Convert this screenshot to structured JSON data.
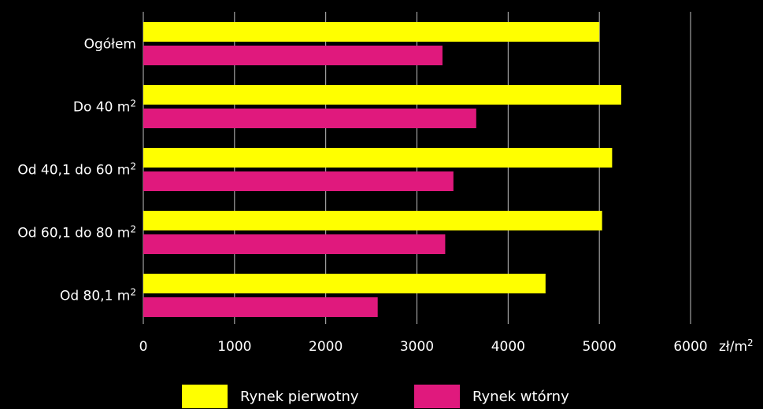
{
  "chart_data": {
    "type": "bar",
    "orientation": "horizontal",
    "categories": [
      {
        "main": "Ogółem",
        "sup": ""
      },
      {
        "main": "Do 40 m",
        "sup": "2"
      },
      {
        "main": "Od 40,1 do 60 m",
        "sup": "2"
      },
      {
        "main": "Od 60,1 do 80 m",
        "sup": "2"
      },
      {
        "main": "Od 80,1 m",
        "sup": "2"
      }
    ],
    "series": [
      {
        "name": "Rynek pierwotny",
        "color": "#ffff00",
        "values": [
          5000,
          5240,
          5140,
          5030,
          4410
        ]
      },
      {
        "name": "Rynek wtórny",
        "color": "#e0197d",
        "values": [
          3280,
          3650,
          3400,
          3310,
          2570
        ]
      }
    ],
    "xlim": [
      0,
      6000
    ],
    "xticks": [
      "0",
      "1000",
      "2000",
      "3000",
      "4000",
      "5000",
      "6000"
    ],
    "xunit": {
      "main": "zł/m",
      "sup": "2"
    },
    "grid": "vertical",
    "gridColor": "#bfbfbf",
    "legend_position": "bottom"
  }
}
